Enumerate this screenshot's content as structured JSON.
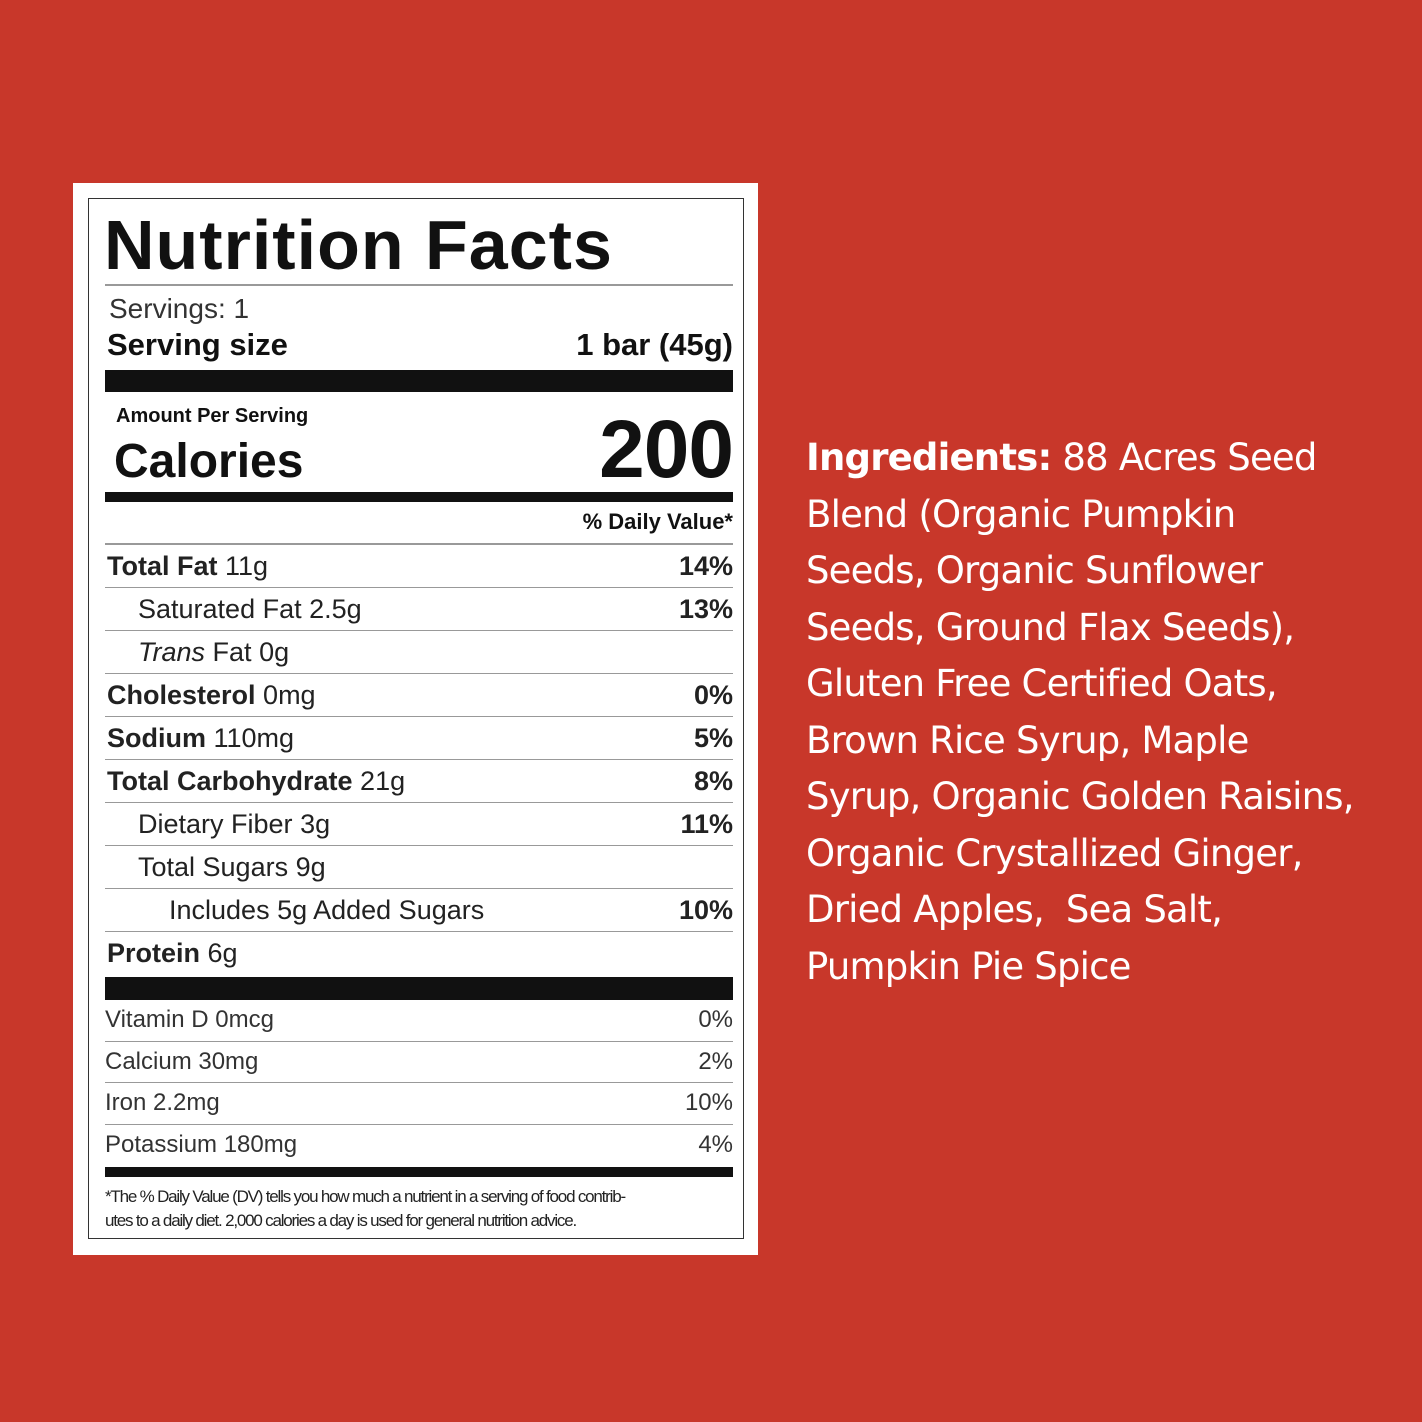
{
  "colors": {
    "background": "#c8372a",
    "label_bg": "#ffffff",
    "text": "#111111",
    "ingredients_text": "#ffffff"
  },
  "label": {
    "title": "Nutrition Facts",
    "servings": "Servings: 1",
    "serving_size_label": "Serving size",
    "serving_size_value": "1 bar (45g)",
    "amount_per_serving": "Amount Per Serving",
    "calories_label": "Calories",
    "calories_value": "200",
    "daily_value_header": "% Daily Value*",
    "nutrients": [
      {
        "name": "Total Fat",
        "amount": "11g",
        "dv": "14%",
        "bold": true,
        "indent": 0
      },
      {
        "name": "Saturated Fat",
        "amount": "2.5g",
        "dv": "13%",
        "bold": false,
        "indent": 1
      },
      {
        "italic_prefix": "Trans",
        "name": "Fat",
        "amount": "0g",
        "dv": "",
        "bold": false,
        "indent": 1
      },
      {
        "name": "Cholesterol",
        "amount": "0mg",
        "dv": "0%",
        "bold": true,
        "indent": 0
      },
      {
        "name": "Sodium",
        "amount": "110mg",
        "dv": "5%",
        "bold": true,
        "indent": 0
      },
      {
        "name": "Total Carbohydrate",
        "amount": "21g",
        "dv": "8%",
        "bold": true,
        "indent": 0
      },
      {
        "name": "Dietary Fiber",
        "amount": "3g",
        "dv": "11%",
        "bold": false,
        "indent": 1
      },
      {
        "name": "Total Sugars",
        "amount": "9g",
        "dv": "",
        "bold": false,
        "indent": 1
      },
      {
        "name": "Includes 5g Added Sugars",
        "amount": "",
        "dv": "10%",
        "bold": false,
        "indent": 2
      },
      {
        "name": "Protein",
        "amount": "6g",
        "dv": "",
        "bold": true,
        "indent": 0
      }
    ],
    "vitamins": [
      {
        "name": "Vitamin D 0mcg",
        "dv": "0%"
      },
      {
        "name": "Calcium 30mg",
        "dv": "2%"
      },
      {
        "name": "Iron 2.2mg",
        "dv": "10%"
      },
      {
        "name": "Potassium 180mg",
        "dv": "4%"
      }
    ],
    "footnote_lines": [
      "*The % Daily Value (DV) tells you how much a nutrient in a serving of food contrib-",
      "utes to a daily diet. 2,000 calories a day is used for general nutrition advice."
    ]
  },
  "ingredients": {
    "label": "Ingredients:",
    "lines": [
      " 88 Acres Seed",
      "Blend (Organic Pumpkin",
      "Seeds, Organic Sunflower",
      "Seeds, Ground Flax Seeds),",
      "Gluten Free Certified Oats,",
      "Brown Rice Syrup, Maple",
      "Syrup, Organic Golden Raisins,",
      "Organic Crystallized Ginger,",
      "Dried Apples,  Sea Salt,",
      "Pumpkin Pie Spice"
    ]
  }
}
